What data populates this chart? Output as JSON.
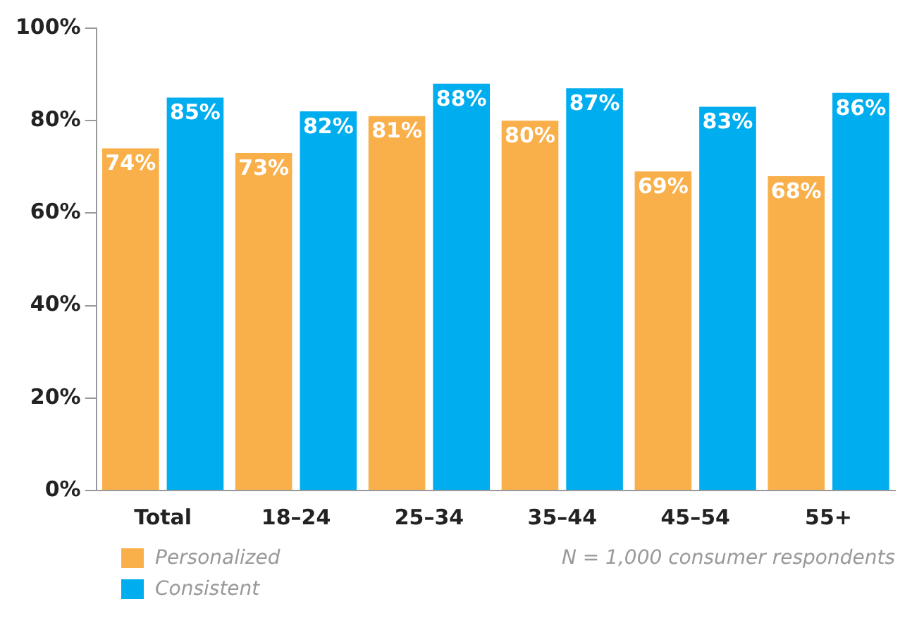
{
  "chart_data": {
    "type": "bar",
    "categories": [
      "Total",
      "18–24",
      "25–34",
      "35–44",
      "45–54",
      "55+"
    ],
    "series": [
      {
        "name": "Personalized",
        "color": "#f9b04b",
        "values": [
          74,
          73,
          81,
          80,
          69,
          68
        ],
        "value_labels": [
          "74%",
          "73%",
          "81%",
          "80%",
          "69%",
          "68%"
        ]
      },
      {
        "name": "Consistent",
        "color": "#00adef",
        "values": [
          85,
          82,
          88,
          87,
          83,
          86
        ],
        "value_labels": [
          "85%",
          "82%",
          "88%",
          "87%",
          "83%",
          "86%"
        ]
      }
    ],
    "ylim": [
      0,
      100
    ],
    "yticks": [
      {
        "value": 0,
        "label": "0%"
      },
      {
        "value": 20,
        "label": "20%"
      },
      {
        "value": 40,
        "label": "40%"
      },
      {
        "value": 60,
        "label": "60%"
      },
      {
        "value": 80,
        "label": "80%"
      },
      {
        "value": 100,
        "label": "100%"
      }
    ],
    "grid": false,
    "legend": "bottom left",
    "annotations": [
      "N = 1,000 consumer respondents"
    ]
  }
}
